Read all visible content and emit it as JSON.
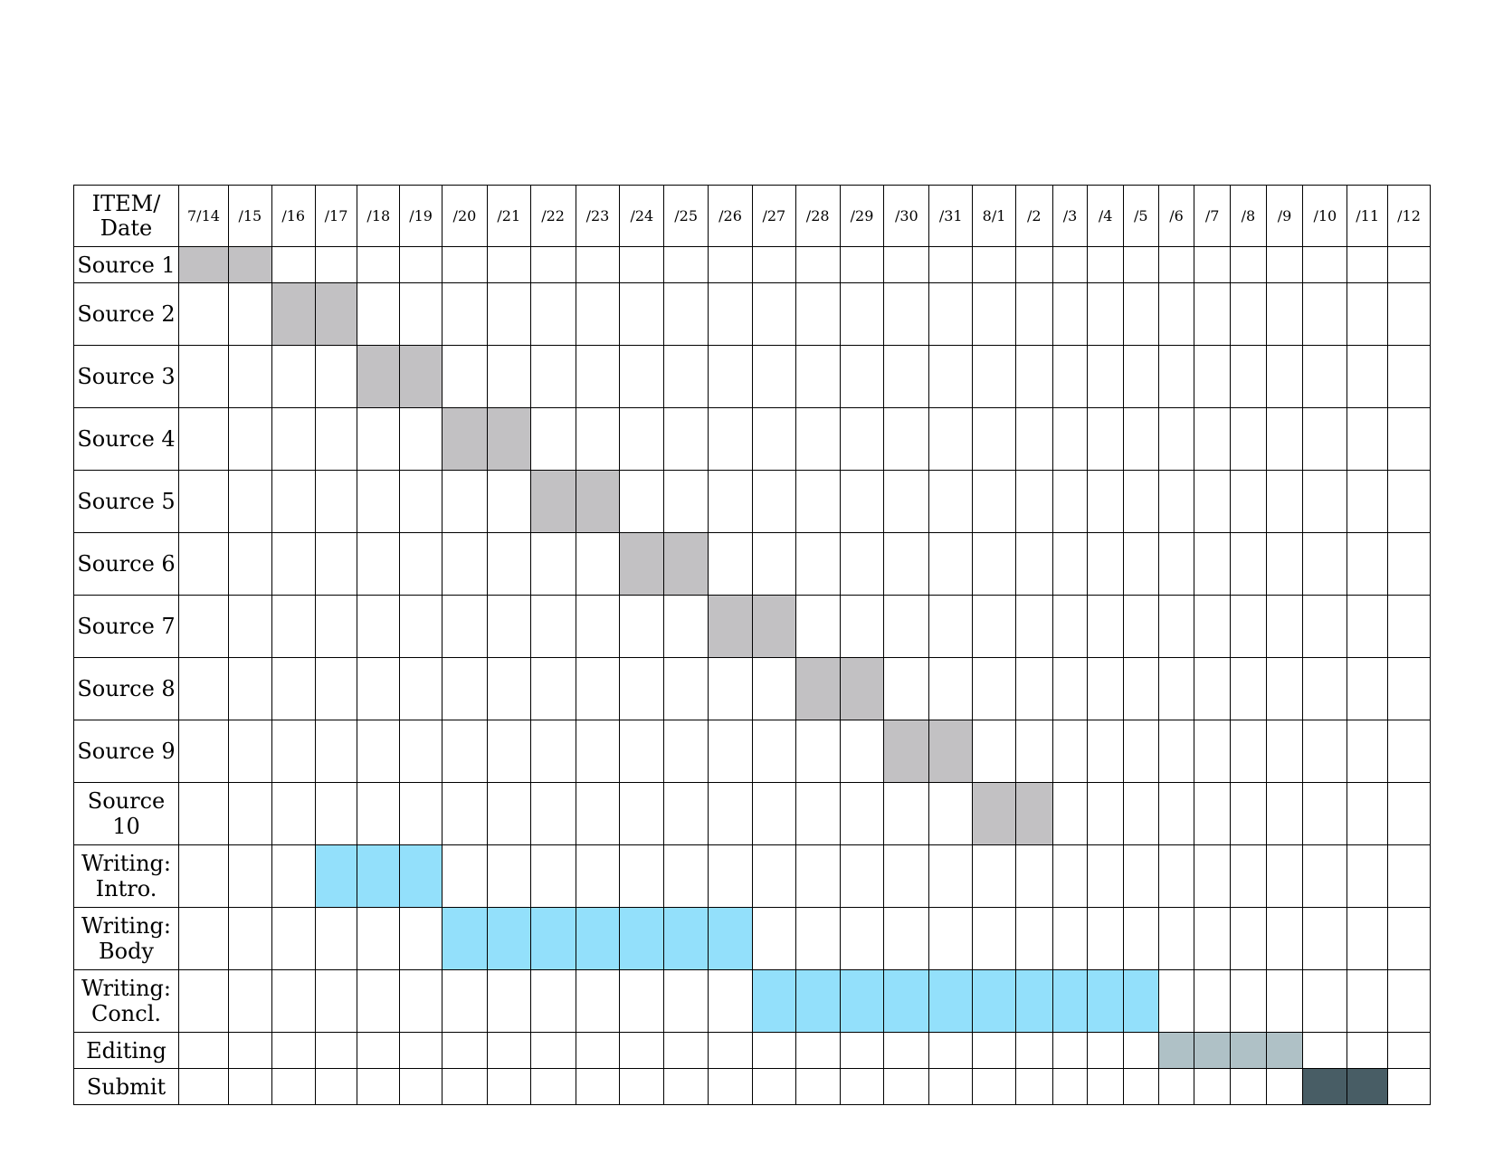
{
  "chart_data": {
    "type": "table",
    "corner_label": "ITEM/ Date",
    "dates": [
      "7/14",
      "/15",
      "/16",
      "/17",
      "/18",
      "/19",
      "/20",
      "/21",
      "/22",
      "/23",
      "/24",
      "/25",
      "/26",
      "/27",
      "/28",
      "/29",
      "/30",
      "/31",
      "8/1",
      "/2",
      "/3",
      "/4",
      "/5",
      "/6",
      "/7",
      "/8",
      "/9",
      "/10",
      "/11",
      "/12"
    ],
    "colors": {
      "source": "#c2c1c3",
      "writing": "#93e0fb",
      "editing": "#afc1c6",
      "submit": "#485d65"
    },
    "rows": [
      {
        "label": "Source 1",
        "start": "7/14",
        "end": "7/15",
        "color_key": "source"
      },
      {
        "label": "Source 2",
        "start": "7/16",
        "end": "7/17",
        "color_key": "source"
      },
      {
        "label": "Source 3",
        "start": "7/18",
        "end": "7/19",
        "color_key": "source"
      },
      {
        "label": "Source 4",
        "start": "7/20",
        "end": "7/21",
        "color_key": "source"
      },
      {
        "label": "Source 5",
        "start": "7/22",
        "end": "7/23",
        "color_key": "source"
      },
      {
        "label": "Source 6",
        "start": "7/24",
        "end": "7/25",
        "color_key": "source"
      },
      {
        "label": "Source 7",
        "start": "7/26",
        "end": "7/27",
        "color_key": "source"
      },
      {
        "label": "Source 8",
        "start": "7/28",
        "end": "7/29",
        "color_key": "source"
      },
      {
        "label": "Source 9",
        "start": "7/30",
        "end": "7/31",
        "color_key": "source"
      },
      {
        "label": "Source 10",
        "start": "8/1",
        "end": "8/2",
        "color_key": "source"
      },
      {
        "label": "Writing: Intro.",
        "start": "7/17",
        "end": "7/19",
        "color_key": "writing"
      },
      {
        "label": "Writing: Body",
        "start": "7/20",
        "end": "7/26",
        "color_key": "writing"
      },
      {
        "label": "Writing: Concl.",
        "start": "7/27",
        "end": "8/5",
        "color_key": "writing"
      },
      {
        "label": "Editing",
        "start": "8/6",
        "end": "8/9",
        "color_key": "editing"
      },
      {
        "label": "Submit",
        "start": "8/10",
        "end": "8/11",
        "color_key": "submit"
      }
    ]
  }
}
